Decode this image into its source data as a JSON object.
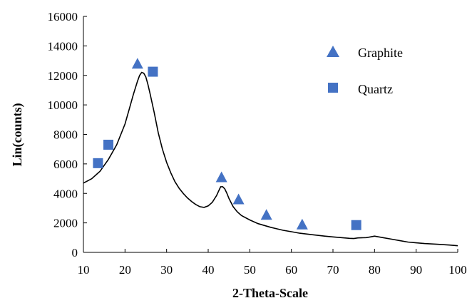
{
  "chart_data": {
    "type": "line",
    "title": "",
    "xlabel": "2-Theta-Scale",
    "ylabel": "Lin(counts)",
    "xlim": [
      10,
      100
    ],
    "ylim": [
      0,
      16000
    ],
    "xticks": [
      10,
      20,
      30,
      40,
      50,
      60,
      70,
      80,
      90,
      100
    ],
    "yticks": [
      0,
      2000,
      4000,
      6000,
      8000,
      10000,
      12000,
      14000,
      16000
    ],
    "grid": false,
    "legend_position": "top-right",
    "series": [
      {
        "type": "line",
        "color": "#000000",
        "x": [
          10,
          12,
          14,
          16,
          18,
          20,
          21,
          22,
          23,
          23.5,
          24,
          24.5,
          25,
          25.5,
          26,
          27,
          28,
          29,
          30,
          31,
          32,
          33,
          34,
          35,
          36,
          37,
          38,
          39,
          40,
          41,
          42,
          42.5,
          43,
          43.5,
          44,
          44.5,
          45,
          46,
          47,
          48,
          50,
          52,
          55,
          58,
          60,
          62,
          65,
          68,
          70,
          72,
          74,
          75,
          76,
          78,
          79,
          80,
          82,
          84,
          86,
          88,
          90,
          92,
          95,
          98,
          100
        ],
        "values": [
          4700,
          5000,
          5500,
          6300,
          7300,
          8700,
          9700,
          10700,
          11600,
          12000,
          12200,
          12150,
          11900,
          11400,
          10800,
          9500,
          8100,
          7000,
          6100,
          5400,
          4800,
          4350,
          4000,
          3700,
          3450,
          3250,
          3100,
          3050,
          3150,
          3400,
          3850,
          4150,
          4450,
          4450,
          4300,
          4000,
          3650,
          3100,
          2750,
          2500,
          2200,
          1950,
          1700,
          1500,
          1400,
          1300,
          1200,
          1100,
          1050,
          1000,
          950,
          940,
          980,
          1000,
          1050,
          1100,
          1000,
          900,
          800,
          700,
          650,
          600,
          550,
          500,
          450
        ]
      },
      {
        "name": "Graphite",
        "type": "scatter",
        "marker": "triangle",
        "color": "#4472c4",
        "x": [
          23,
          43.2,
          47.3,
          54,
          62.6
        ],
        "values": [
          12800,
          5100,
          3600,
          2550,
          1900
        ]
      },
      {
        "name": "Quartz",
        "type": "scatter",
        "marker": "square",
        "color": "#4472c4",
        "x": [
          13.5,
          16,
          26.7,
          75.6
        ],
        "values": [
          6050,
          7300,
          12250,
          1850
        ]
      }
    ]
  }
}
